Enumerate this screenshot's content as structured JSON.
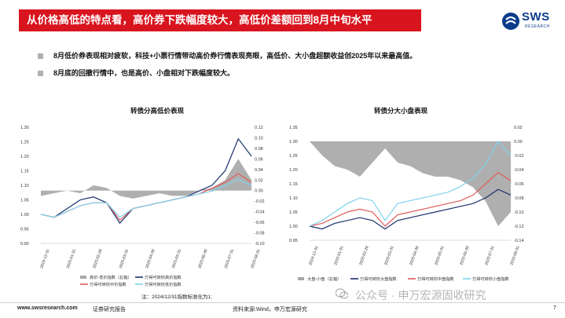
{
  "header": {
    "title": "从价格高低的特点看，高价券下跌幅度较大，高低价差额回到8月中旬水平",
    "logo_text": "SWS",
    "logo_sub": "RESEARCH"
  },
  "bullets": [
    "8月低价券表现相对疲软，科技+小票行情带动高价券行情表现亮眼，高低价、大小盘超额收益创2025年以来最高值。",
    "8月底的回撤行情中，也是高价、小盘相对下跌幅度较大。"
  ],
  "colors": {
    "title_bg": "#d8141f",
    "logo": "#0a3c8c",
    "area": "#a6a6a6",
    "navy": "#1a2f6b",
    "red": "#e05a5a",
    "cyan": "#7fd3ee"
  },
  "note": "注：2024/12/31指数标准化为1;",
  "footer": {
    "url": "www.swsresearch.com",
    "report": "证券研究报告",
    "source": "资料来源:Wind，申万宏源研究",
    "page": "7"
  },
  "watermark": "公众号 · 申万宏源固收研究",
  "chart_data": [
    {
      "type": "line",
      "title": "转债分高低价表现",
      "x_ticks": [
        "2024-12-31",
        "2025-01-31",
        "2025-02-28",
        "2025-03-31",
        "2025-04-30",
        "2025-05-31",
        "2025-06-30",
        "2025-07-31",
        "2025-08-31"
      ],
      "y_left_ticks": [
        "1.30",
        "1.25",
        "1.20",
        "1.15",
        "1.10",
        "1.05",
        "1.00",
        "0.95",
        "0.90"
      ],
      "ylim_left": [
        0.9,
        1.3
      ],
      "y_right_ticks": [
        "0.12",
        "0.10",
        "0.08",
        "0.06",
        "0.04",
        "0.02",
        "0.00",
        "-0.02",
        "-0.04",
        "-0.06",
        "-0.08",
        "-0.10"
      ],
      "ylim_right": [
        -0.1,
        0.12
      ],
      "legend": [
        "高价-低价指数（右轴）",
        "万得可转债高价指数",
        "万得可转债中价指数",
        "万得可转债低价指数"
      ],
      "x_index": [
        0,
        4,
        8,
        12,
        16,
        20,
        24,
        28,
        32,
        36,
        40,
        44,
        48,
        52,
        56,
        60,
        64
      ],
      "series": [
        {
          "name": "高价-低价指数（右轴）",
          "axis": "right",
          "values": [
            -0.01,
            -0.005,
            0.0,
            -0.005,
            0.01,
            0.005,
            -0.01,
            -0.015,
            -0.01,
            -0.005,
            -0.01,
            -0.01,
            0.0,
            0.005,
            0.02,
            0.06,
            0.02
          ]
        },
        {
          "name": "万得可转债高价指数",
          "values": [
            1.0,
            0.99,
            1.02,
            1.05,
            1.06,
            1.04,
            0.97,
            1.02,
            1.03,
            1.04,
            1.05,
            1.06,
            1.08,
            1.1,
            1.15,
            1.26,
            1.2
          ]
        },
        {
          "name": "万得可转债中价指数",
          "values": [
            1.0,
            0.99,
            1.01,
            1.03,
            1.04,
            1.04,
            0.98,
            1.02,
            1.03,
            1.04,
            1.05,
            1.06,
            1.07,
            1.09,
            1.11,
            1.14,
            1.11
          ]
        },
        {
          "name": "万得可转债低价指数",
          "values": [
            1.0,
            0.99,
            1.01,
            1.03,
            1.04,
            1.04,
            0.99,
            1.02,
            1.03,
            1.04,
            1.05,
            1.06,
            1.07,
            1.08,
            1.1,
            1.12,
            1.1
          ]
        }
      ]
    },
    {
      "type": "line",
      "title": "转债分大小盘表现",
      "x_ticks": [
        "2024-12-31",
        "2025-01-31",
        "2025-02-28",
        "2025-03-31",
        "2025-04-30",
        "2025-05-31",
        "2025-06-30",
        "2025-07-31",
        "2025-08-31"
      ],
      "y_left_ticks": [
        "1.35",
        "1.30",
        "1.25",
        "1.20",
        "1.15",
        "1.10",
        "1.05",
        "1.00",
        "0.95"
      ],
      "ylim_left": [
        0.95,
        1.35
      ],
      "y_right_ticks": [
        "0.02",
        "0.00",
        "-0.02",
        "-0.04",
        "-0.06",
        "-0.08",
        "-0.10",
        "-0.12",
        "-0.14"
      ],
      "ylim_right": [
        -0.14,
        0.02
      ],
      "legend": [
        "大盘-小盘（右轴）",
        "万得可转债大盘指数",
        "万得可转债中盘指数",
        "万得可转债小盘指数"
      ],
      "x_index": [
        0,
        4,
        8,
        12,
        16,
        20,
        24,
        28,
        32,
        36,
        40,
        44,
        48,
        52,
        56,
        60,
        64
      ],
      "series": [
        {
          "name": "大盘-小盘（右轴）",
          "axis": "right",
          "values": [
            0.0,
            -0.02,
            -0.035,
            -0.04,
            -0.05,
            -0.03,
            -0.01,
            -0.03,
            -0.035,
            -0.045,
            -0.05,
            -0.05,
            -0.055,
            -0.065,
            -0.085,
            -0.12,
            -0.1
          ]
        },
        {
          "name": "万得可转债大盘指数",
          "values": [
            1.0,
            0.99,
            1.01,
            1.02,
            1.03,
            1.02,
            0.99,
            1.02,
            1.03,
            1.04,
            1.05,
            1.06,
            1.07,
            1.08,
            1.1,
            1.13,
            1.11
          ]
        },
        {
          "name": "万得可转债中盘指数",
          "values": [
            1.0,
            1.01,
            1.03,
            1.05,
            1.06,
            1.05,
            1.0,
            1.04,
            1.05,
            1.06,
            1.07,
            1.08,
            1.09,
            1.11,
            1.15,
            1.19,
            1.16
          ]
        },
        {
          "name": "万得可转债小盘指数",
          "values": [
            1.0,
            1.02,
            1.05,
            1.08,
            1.1,
            1.09,
            1.02,
            1.08,
            1.09,
            1.1,
            1.11,
            1.12,
            1.14,
            1.17,
            1.22,
            1.3,
            1.25
          ]
        }
      ]
    }
  ]
}
